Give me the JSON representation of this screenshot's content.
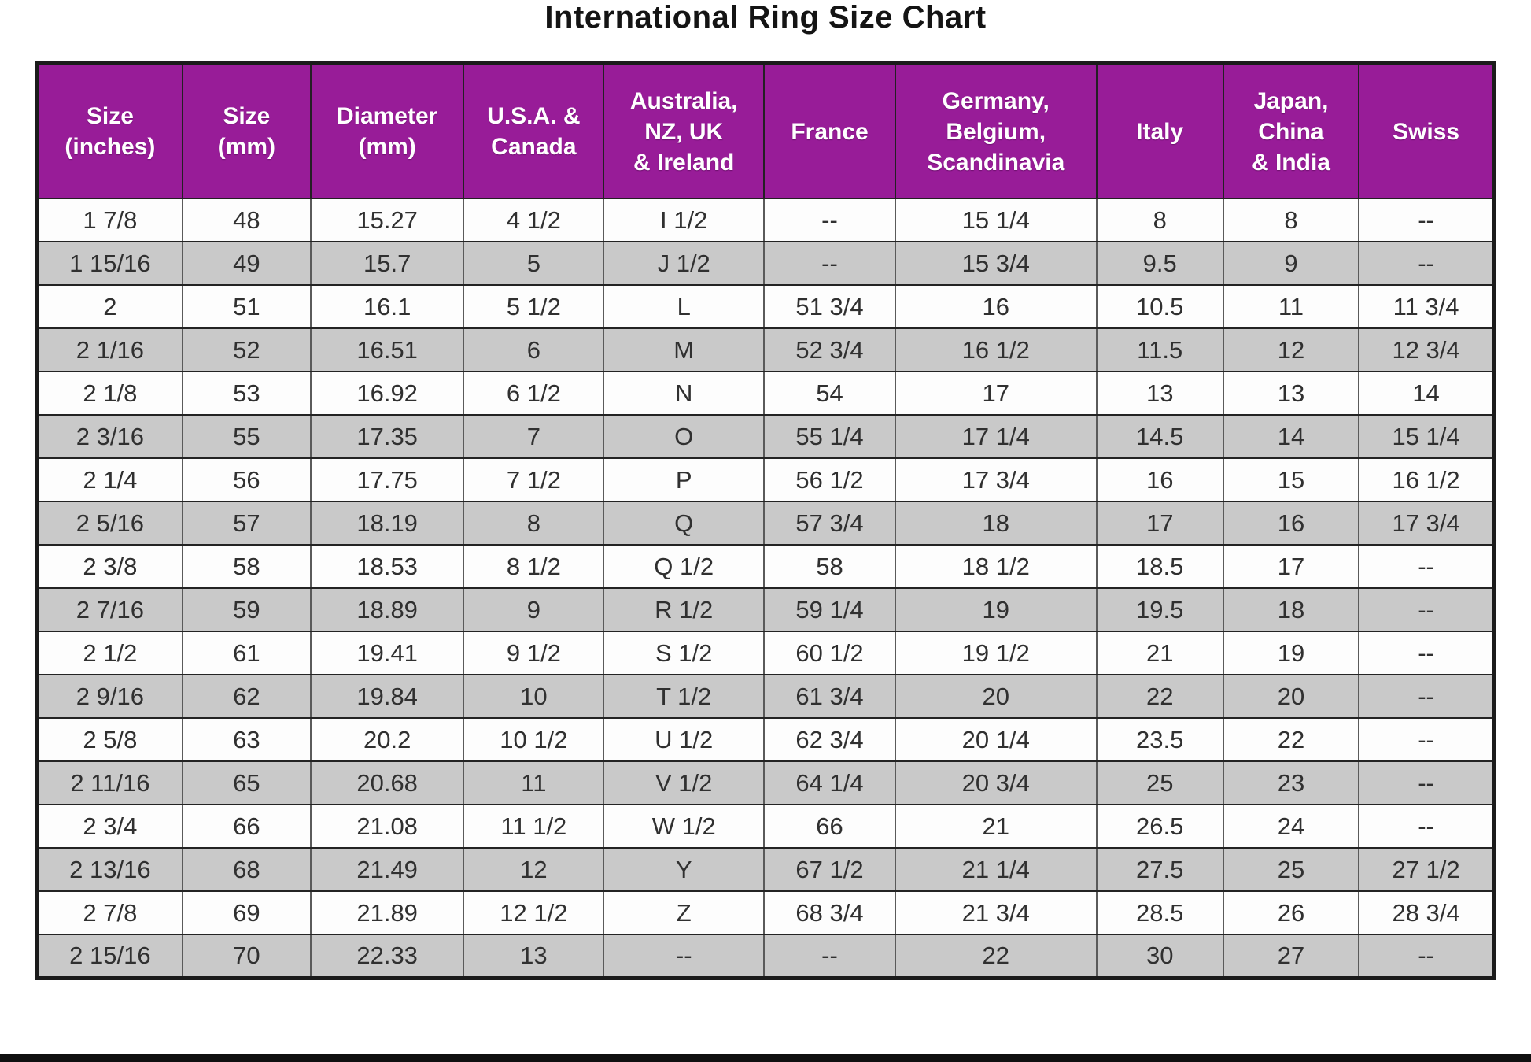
{
  "title": "International Ring Size Chart",
  "colors": {
    "header_bg": "#981c98",
    "header_text": "#ffffff",
    "row_white": "#fdfdfd",
    "row_gray": "#c9c9c9",
    "border_dark": "#1b1b1b"
  },
  "chart_data": {
    "type": "table",
    "title": "International Ring Size Chart",
    "columns": [
      "Size\n(inches)",
      "Size\n(mm)",
      "Diameter\n(mm)",
      "U.S.A. &\nCanada",
      "Australia,\nNZ, UK\n& Ireland",
      "France",
      "Germany,\nBelgium,\nScandinavia",
      "Italy",
      "Japan,\nChina\n& India",
      "Swiss"
    ],
    "rows": [
      [
        "1 7/8",
        "48",
        "15.27",
        "4 1/2",
        "I 1/2",
        "--",
        "15 1/4",
        "8",
        "8",
        "--"
      ],
      [
        "1 15/16",
        "49",
        "15.7",
        "5",
        "J 1/2",
        "--",
        "15 3/4",
        "9.5",
        "9",
        "--"
      ],
      [
        "2",
        "51",
        "16.1",
        "5 1/2",
        "L",
        "51 3/4",
        "16",
        "10.5",
        "11",
        "11 3/4"
      ],
      [
        "2 1/16",
        "52",
        "16.51",
        "6",
        "M",
        "52 3/4",
        "16 1/2",
        "11.5",
        "12",
        "12 3/4"
      ],
      [
        "2 1/8",
        "53",
        "16.92",
        "6 1/2",
        "N",
        "54",
        "17",
        "13",
        "13",
        "14"
      ],
      [
        "2 3/16",
        "55",
        "17.35",
        "7",
        "O",
        "55 1/4",
        "17 1/4",
        "14.5",
        "14",
        "15 1/4"
      ],
      [
        "2 1/4",
        "56",
        "17.75",
        "7 1/2",
        "P",
        "56 1/2",
        "17 3/4",
        "16",
        "15",
        "16 1/2"
      ],
      [
        "2 5/16",
        "57",
        "18.19",
        "8",
        "Q",
        "57 3/4",
        "18",
        "17",
        "16",
        "17 3/4"
      ],
      [
        "2 3/8",
        "58",
        "18.53",
        "8 1/2",
        "Q 1/2",
        "58",
        "18 1/2",
        "18.5",
        "17",
        "--"
      ],
      [
        "2 7/16",
        "59",
        "18.89",
        "9",
        "R 1/2",
        "59 1/4",
        "19",
        "19.5",
        "18",
        "--"
      ],
      [
        "2 1/2",
        "61",
        "19.41",
        "9 1/2",
        "S 1/2",
        "60 1/2",
        "19 1/2",
        "21",
        "19",
        "--"
      ],
      [
        "2 9/16",
        "62",
        "19.84",
        "10",
        "T 1/2",
        "61 3/4",
        "20",
        "22",
        "20",
        "--"
      ],
      [
        "2 5/8",
        "63",
        "20.2",
        "10 1/2",
        "U 1/2",
        "62 3/4",
        "20 1/4",
        "23.5",
        "22",
        "--"
      ],
      [
        "2 11/16",
        "65",
        "20.68",
        "11",
        "V 1/2",
        "64 1/4",
        "20 3/4",
        "25",
        "23",
        "--"
      ],
      [
        "2 3/4",
        "66",
        "21.08",
        "11 1/2",
        "W 1/2",
        "66",
        "21",
        "26.5",
        "24",
        "--"
      ],
      [
        "2 13/16",
        "68",
        "21.49",
        "12",
        "Y",
        "67 1/2",
        "21 1/4",
        "27.5",
        "25",
        "27 1/2"
      ],
      [
        "2 7/8",
        "69",
        "21.89",
        "12 1/2",
        "Z",
        "68 3/4",
        "21 3/4",
        "28.5",
        "26",
        "28 3/4"
      ],
      [
        "2 15/16",
        "70",
        "22.33",
        "13",
        "--",
        "--",
        "22",
        "30",
        "27",
        "--"
      ]
    ]
  }
}
